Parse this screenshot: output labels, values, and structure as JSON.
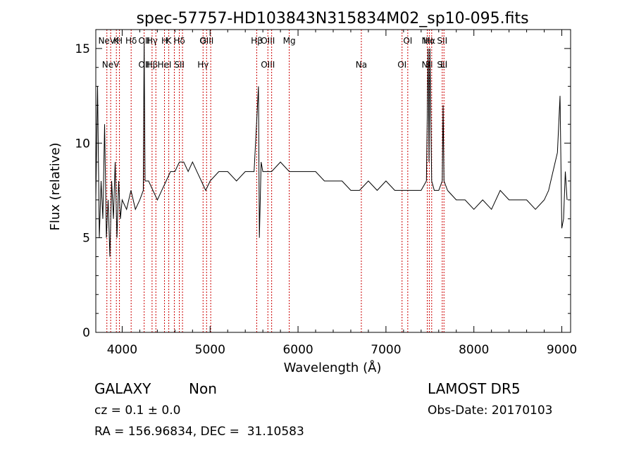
{
  "chart_data": {
    "type": "line",
    "title": "spec-57757-HD103843N315834M02_sp10-095.fits",
    "xlabel": "Wavelength (Å)",
    "ylabel": "Flux (relative)",
    "xlim": [
      3700,
      9100
    ],
    "ylim": [
      0,
      16
    ],
    "x_ticks": [
      4000,
      5000,
      6000,
      7000,
      8000,
      9000
    ],
    "y_ticks": [
      0,
      5,
      10,
      15
    ],
    "grid": false,
    "line_color": "#000000",
    "marker_color": "#cc0000",
    "series": [
      {
        "x": [
          3700,
          3720,
          3740,
          3760,
          3780,
          3800,
          3820,
          3840,
          3860,
          3880,
          3900,
          3920,
          3940,
          3960,
          3980,
          4000,
          4050,
          4100,
          4150,
          4200,
          4240,
          4250,
          4260,
          4300,
          4350,
          4400,
          4450,
          4500,
          4550,
          4600,
          4650,
          4700,
          4750,
          4800,
          4850,
          4900,
          4950,
          5000,
          5100,
          5200,
          5300,
          5400,
          5500,
          5550,
          5560,
          5580,
          5600,
          5700,
          5800,
          5900,
          6000,
          6100,
          6200,
          6300,
          6400,
          6500,
          6600,
          6700,
          6800,
          6900,
          7000,
          7100,
          7200,
          7300,
          7400,
          7460,
          7480,
          7490,
          7500,
          7520,
          7550,
          7600,
          7640,
          7650,
          7660,
          7700,
          7800,
          7900,
          8000,
          8100,
          8200,
          8300,
          8400,
          8500,
          8600,
          8700,
          8800,
          8850,
          8900,
          8950,
          8980,
          9000,
          9020,
          9040,
          9060
        ],
        "y": [
          7,
          13,
          5,
          8,
          6,
          11,
          5,
          7,
          4,
          8,
          6,
          9,
          5,
          8,
          6,
          7,
          6.5,
          7.5,
          6.5,
          7,
          7.5,
          15.5,
          8,
          8,
          7.5,
          7,
          7.5,
          8,
          8.5,
          8.5,
          9,
          9,
          8.5,
          9,
          8.5,
          8,
          7.5,
          8,
          8.5,
          8.5,
          8,
          8.5,
          8.5,
          13,
          5,
          9,
          8.5,
          8.5,
          9,
          8.5,
          8.5,
          8.5,
          8.5,
          8,
          8,
          8,
          7.5,
          7.5,
          8,
          7.5,
          8,
          7.5,
          7.5,
          7.5,
          7.5,
          8,
          15,
          9,
          15,
          8,
          7.5,
          7.5,
          8,
          12,
          8,
          7.5,
          7,
          7,
          6.5,
          7,
          6.5,
          7.5,
          7,
          7,
          7,
          6.5,
          7,
          7.5,
          8.5,
          9.5,
          12.5,
          5.5,
          6,
          8.5,
          7
        ]
      }
    ],
    "line_markers": [
      {
        "wl": 3826,
        "top": "NeV",
        "bot": ""
      },
      {
        "wl": 3869,
        "top": "",
        "bot": "NeV"
      },
      {
        "wl": 3934,
        "top": "K",
        "bot": ""
      },
      {
        "wl": 3969,
        "top": "H",
        "bot": ""
      },
      {
        "wl": 4102,
        "top": "Hδ",
        "bot": ""
      },
      {
        "wl": 4250,
        "top": "OII",
        "bot": "OII"
      },
      {
        "wl": 4340,
        "top": "Hγ",
        "bot": "Hβ"
      },
      {
        "wl": 4383,
        "top": "",
        "bot": ""
      },
      {
        "wl": 4481,
        "top": "H",
        "bot": "HeI"
      },
      {
        "wl": 4530,
        "top": "K",
        "bot": ""
      },
      {
        "wl": 4593,
        "top": "",
        "bot": ""
      },
      {
        "wl": 4650,
        "top": "Hδ",
        "bot": "SII"
      },
      {
        "wl": 4686,
        "top": "",
        "bot": ""
      },
      {
        "wl": 4920,
        "top": "G",
        "bot": "Hγ"
      },
      {
        "wl": 4960,
        "top": "OIII",
        "bot": ""
      },
      {
        "wl": 5007,
        "top": "",
        "bot": ""
      },
      {
        "wl": 5530,
        "top": "Hβ",
        "bot": ""
      },
      {
        "wl": 5657,
        "top": "OIII",
        "bot": "OIII"
      },
      {
        "wl": 5700,
        "top": "",
        "bot": ""
      },
      {
        "wl": 5900,
        "top": "Mg",
        "bot": ""
      },
      {
        "wl": 6720,
        "top": "",
        "bot": "Na"
      },
      {
        "wl": 7183,
        "top": "",
        "bot": "OI"
      },
      {
        "wl": 7248,
        "top": "OI",
        "bot": ""
      },
      {
        "wl": 7470,
        "top": "NII",
        "bot": "NII"
      },
      {
        "wl": 7493,
        "top": "Hα",
        "bot": ""
      },
      {
        "wl": 7520,
        "top": "",
        "bot": ""
      },
      {
        "wl": 7640,
        "top": "SII",
        "bot": "SII"
      },
      {
        "wl": 7660,
        "top": "",
        "bot": "Li"
      }
    ]
  },
  "info": {
    "class": "GALAXY",
    "subclass": "Non",
    "cz": "cz = 0.1 ± 0.0",
    "radec": "RA = 156.96834, DEC =  31.10583",
    "survey": "LAMOST DR5",
    "obsdate": "Obs-Date: 20170103"
  }
}
